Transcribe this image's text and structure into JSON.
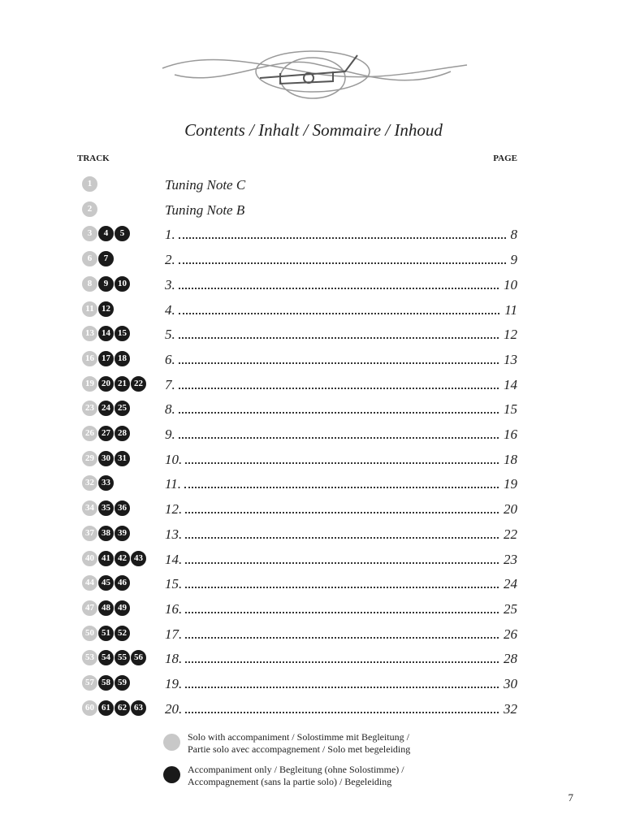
{
  "header": {
    "title": "Contents / Inhalt / Sommaire / Inhoud",
    "track_heading": "TRACK",
    "page_heading": "PAGE"
  },
  "entries": [
    {
      "solo": [
        1
      ],
      "accompaniment": [],
      "label": "Tuning Note C"
    },
    {
      "solo": [
        2
      ],
      "accompaniment": [],
      "label": "Tuning Note B"
    },
    {
      "solo": [
        3
      ],
      "accompaniment": [
        4,
        5
      ],
      "label": "1.",
      "page": 8
    },
    {
      "solo": [
        6
      ],
      "accompaniment": [
        7
      ],
      "label": "2.",
      "page": 9
    },
    {
      "solo": [
        8
      ],
      "accompaniment": [
        9,
        10
      ],
      "label": "3.",
      "page": 10
    },
    {
      "solo": [
        11
      ],
      "accompaniment": [
        12
      ],
      "label": "4.",
      "page": 11
    },
    {
      "solo": [
        13
      ],
      "accompaniment": [
        14,
        15
      ],
      "label": "5.",
      "page": 12
    },
    {
      "solo": [
        16
      ],
      "accompaniment": [
        17,
        18
      ],
      "label": "6.",
      "page": 13
    },
    {
      "solo": [
        19
      ],
      "accompaniment": [
        20,
        21,
        22
      ],
      "label": "7.",
      "page": 14
    },
    {
      "solo": [
        23
      ],
      "accompaniment": [
        24,
        25
      ],
      "label": "8.",
      "page": 15
    },
    {
      "solo": [
        26
      ],
      "accompaniment": [
        27,
        28
      ],
      "label": "9.",
      "page": 16
    },
    {
      "solo": [
        29
      ],
      "accompaniment": [
        30,
        31
      ],
      "label": "10.",
      "page": 18
    },
    {
      "solo": [
        32
      ],
      "accompaniment": [
        33
      ],
      "label": "11.",
      "page": 19
    },
    {
      "solo": [
        34
      ],
      "accompaniment": [
        35,
        36
      ],
      "label": "12.",
      "page": 20
    },
    {
      "solo": [
        37
      ],
      "accompaniment": [
        38,
        39
      ],
      "label": "13.",
      "page": 22
    },
    {
      "solo": [
        40
      ],
      "accompaniment": [
        41,
        42,
        43
      ],
      "label": "14.",
      "page": 23
    },
    {
      "solo": [
        44
      ],
      "accompaniment": [
        45,
        46
      ],
      "label": "15.",
      "page": 24
    },
    {
      "solo": [
        47
      ],
      "accompaniment": [
        48,
        49
      ],
      "label": "16.",
      "page": 25
    },
    {
      "solo": [
        50
      ],
      "accompaniment": [
        51,
        52
      ],
      "label": "17.",
      "page": 26
    },
    {
      "solo": [
        53
      ],
      "accompaniment": [
        54,
        55,
        56
      ],
      "label": "18.",
      "page": 28
    },
    {
      "solo": [
        57
      ],
      "accompaniment": [
        58,
        59
      ],
      "label": "19.",
      "page": 30
    },
    {
      "solo": [
        60
      ],
      "accompaniment": [
        61,
        62,
        63
      ],
      "label": "20.",
      "page": 32
    }
  ],
  "legend": [
    {
      "color": "#c8c8c8",
      "lines": [
        "Solo with accompaniment / Solostimme mit Begleitung /",
        "Partie solo avec accompagnement / Solo met begeleiding"
      ]
    },
    {
      "color": "#1a1a1a",
      "lines": [
        "Accompaniment only / Begleitung (ohne Solostimme) /",
        "Accompagnement (sans la partie solo) / Begeleiding"
      ]
    }
  ],
  "footer": {
    "page_number": 7
  },
  "colors": {
    "solo": "#c8c8c8",
    "accompaniment": "#1a1a1a"
  }
}
